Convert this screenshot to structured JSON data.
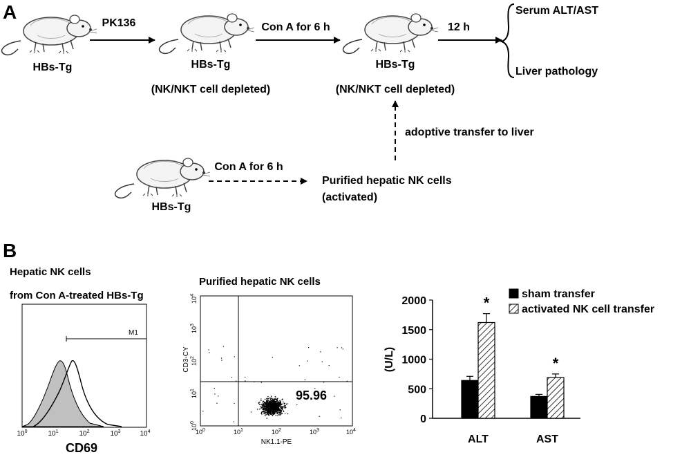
{
  "panel_a": {
    "label": "A",
    "mouse_label": "HBs-Tg",
    "step1_arrow": "PK136",
    "depleted_note": "(NK/NKT cell depleted)",
    "step2_arrow": "Con A for 6 h",
    "step3_arrow": "12 h",
    "outcome_1": "Serum ALT/AST",
    "outcome_2": "Liver pathology",
    "transfer_arrow": "adoptive transfer to liver",
    "donor_arrow": "Con A for 6 h",
    "purified_line1": "Purified hepatic NK cells",
    "purified_line2": "(activated)"
  },
  "panel_b": {
    "label": "B",
    "histogram": {
      "title_line1": "Hepatic NK cells",
      "title_line2": "from Con A-treated HBs-Tg",
      "xlabel": "CD69",
      "gate_label": "M1",
      "x_ticks": [
        "10",
        "10",
        "10",
        "10",
        "10"
      ],
      "x_tick_exps": [
        "0",
        "1",
        "2",
        "3",
        "4"
      ]
    },
    "dotplot": {
      "title": "Purified hepatic NK cells",
      "xlabel": "NK1.1-PE",
      "ylabel": "CD3-CY",
      "quadrant_value": "95.96",
      "ticks": [
        "10",
        "10",
        "10",
        "10",
        "10"
      ],
      "tick_exps": [
        "0",
        "1",
        "2",
        "3",
        "4"
      ]
    }
  },
  "chart_data": {
    "type": "bar",
    "categories": [
      "ALT",
      "AST"
    ],
    "series": [
      {
        "name": "sham transfer",
        "values": [
          640,
          370
        ],
        "errors": [
          70,
          35
        ],
        "color": "#000000",
        "pattern": "solid"
      },
      {
        "name": "activated NK cell transfer",
        "values": [
          1620,
          690
        ],
        "errors": [
          150,
          60
        ],
        "color": "#ffffff",
        "pattern": "hatched"
      }
    ],
    "significance": [
      "*",
      "*"
    ],
    "ylabel": "(U/L)",
    "ylim": [
      0,
      2000
    ],
    "y_ticks": [
      "0",
      "500",
      "1000",
      "1500",
      "2000"
    ],
    "legend_position": "top-right",
    "grid": false
  }
}
